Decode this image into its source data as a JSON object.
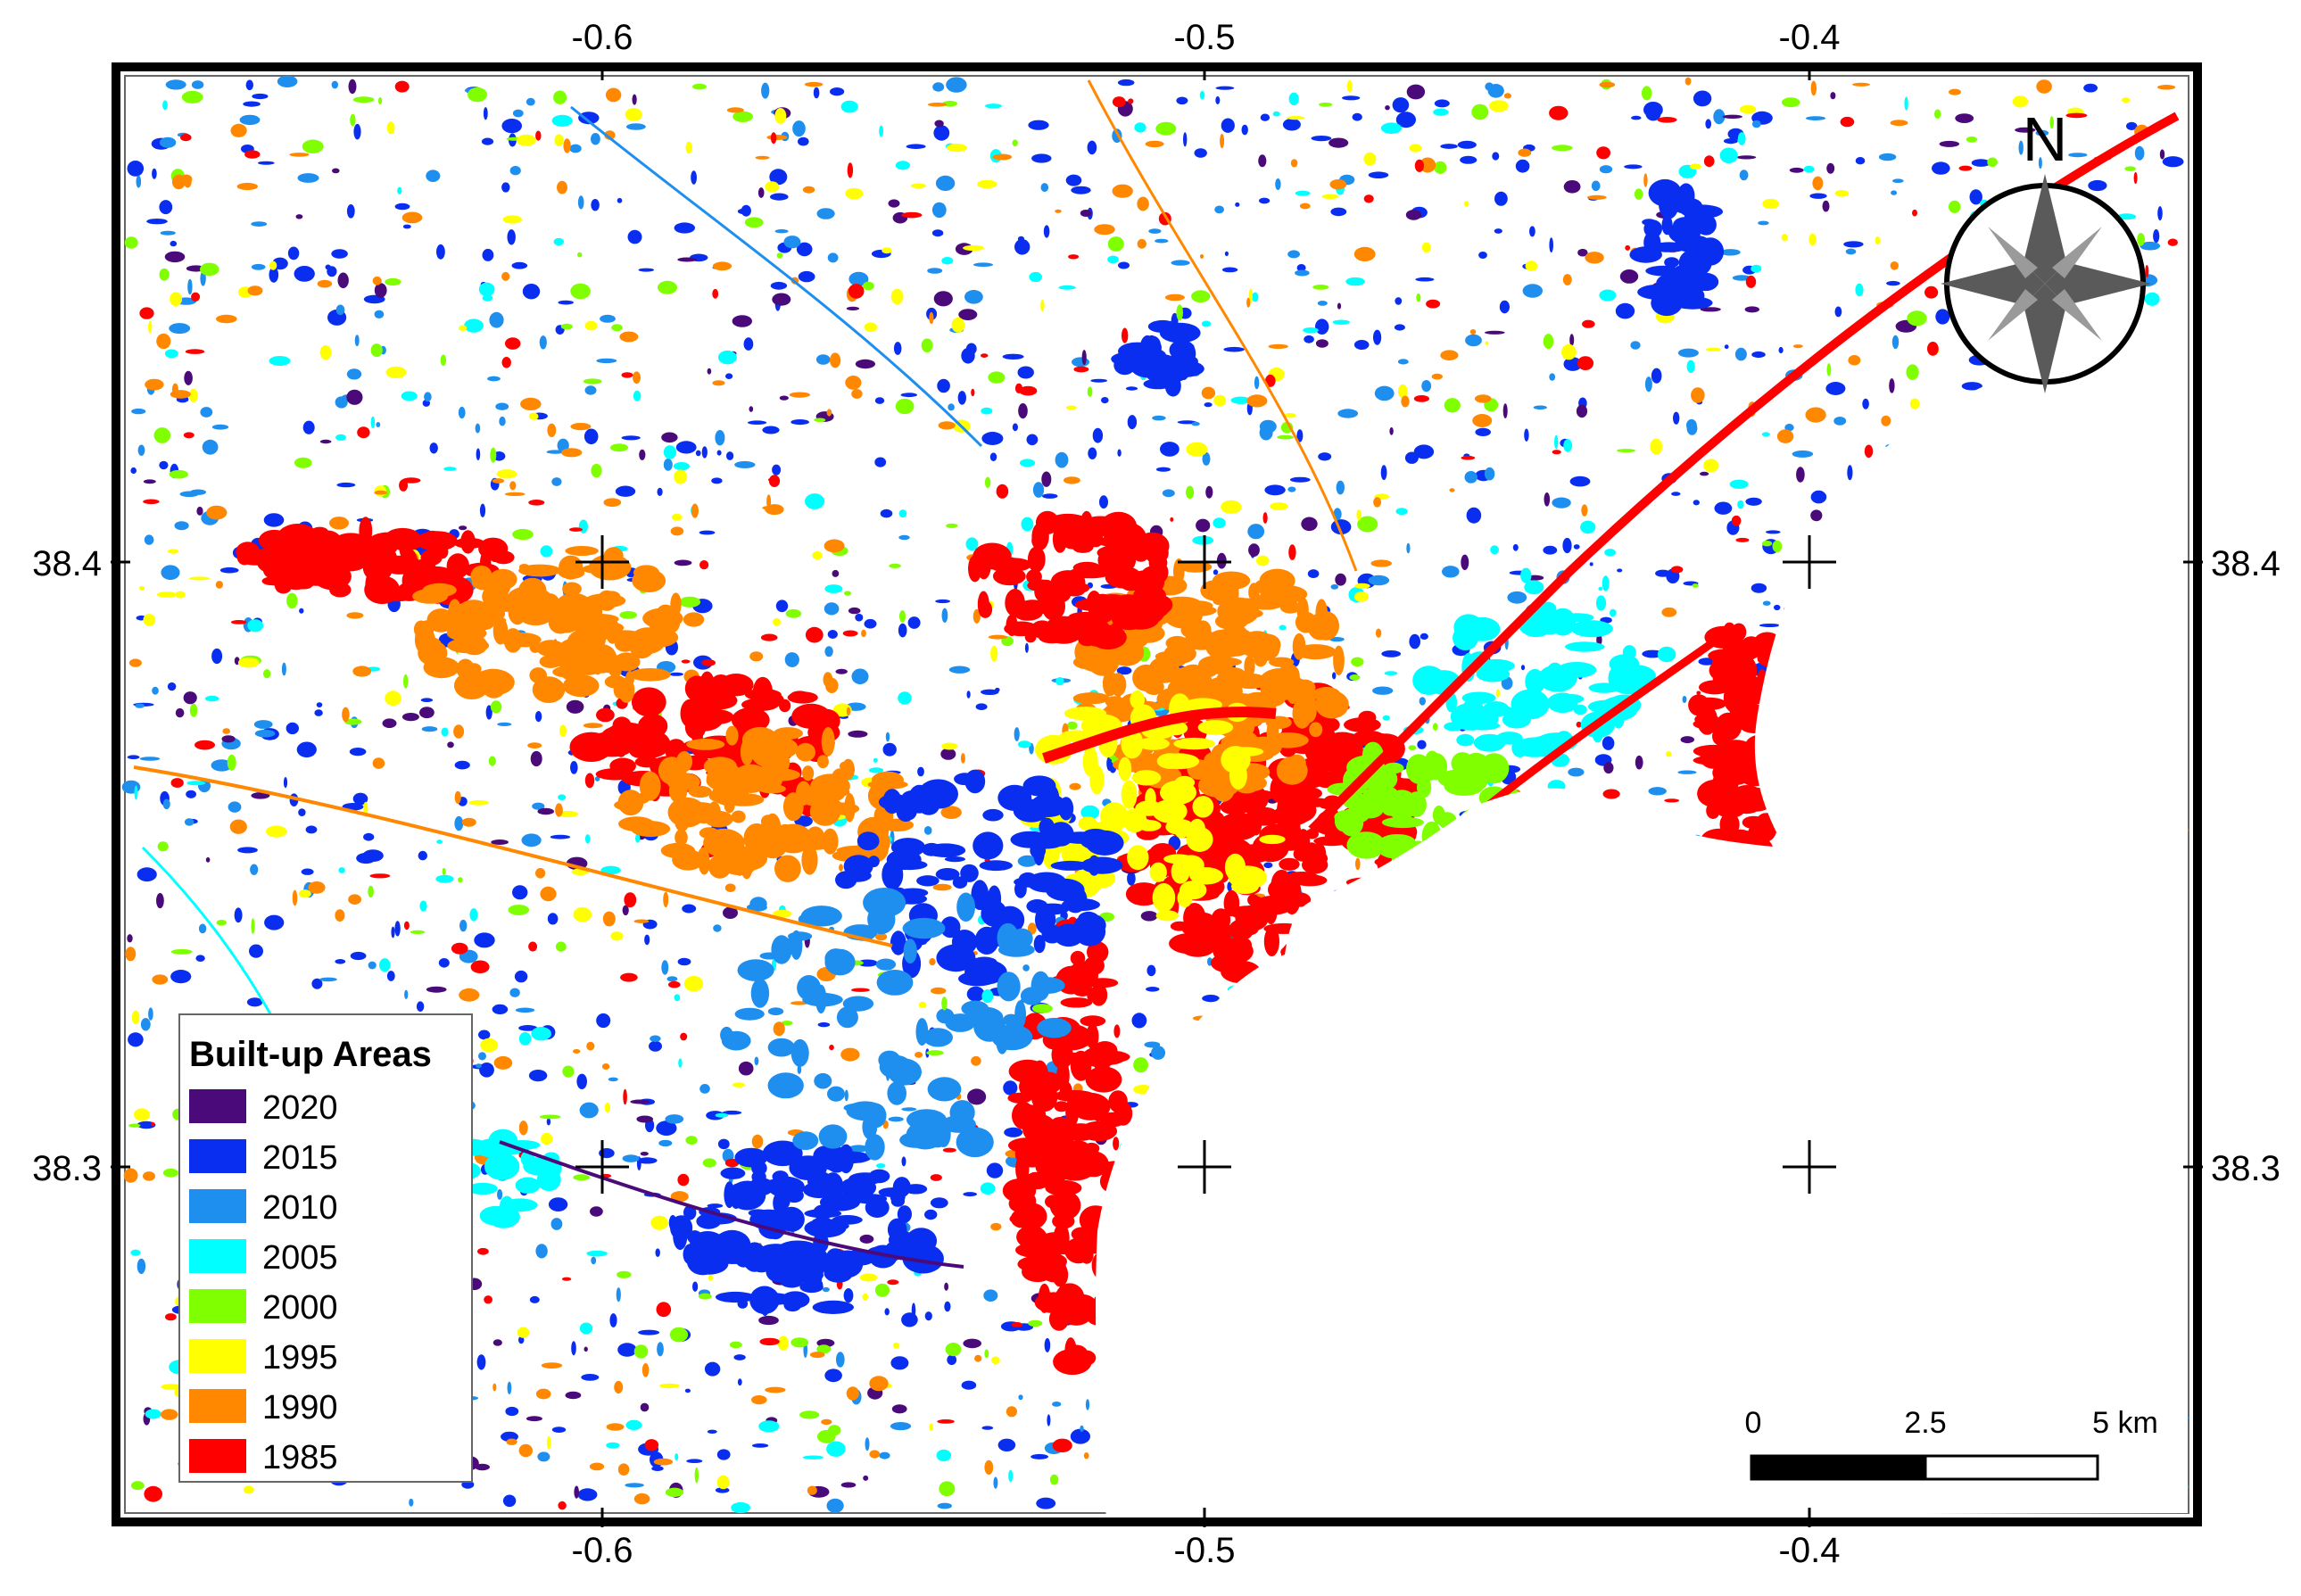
{
  "map": {
    "lon_ticks": [
      "-0.6",
      "-0.5",
      "-0.4"
    ],
    "lat_ticks": [
      "38.4",
      "38.3"
    ]
  },
  "legend": {
    "title": "Built-up Areas",
    "items": [
      {
        "label": "2020",
        "color": "#4b0a7a"
      },
      {
        "label": "2015",
        "color": "#0a2ef0"
      },
      {
        "label": "2010",
        "color": "#1e8fef"
      },
      {
        "label": "2005",
        "color": "#00ffff"
      },
      {
        "label": "2000",
        "color": "#7fff00"
      },
      {
        "label": "1995",
        "color": "#ffff00"
      },
      {
        "label": "1990",
        "color": "#ff8800"
      },
      {
        "label": "1985",
        "color": "#ff0000"
      }
    ]
  },
  "scale_bar": {
    "labels": [
      "0",
      "2.5",
      "5 km"
    ]
  },
  "north_arrow": {
    "label": "N",
    "icon": "north-arrow-icon"
  }
}
